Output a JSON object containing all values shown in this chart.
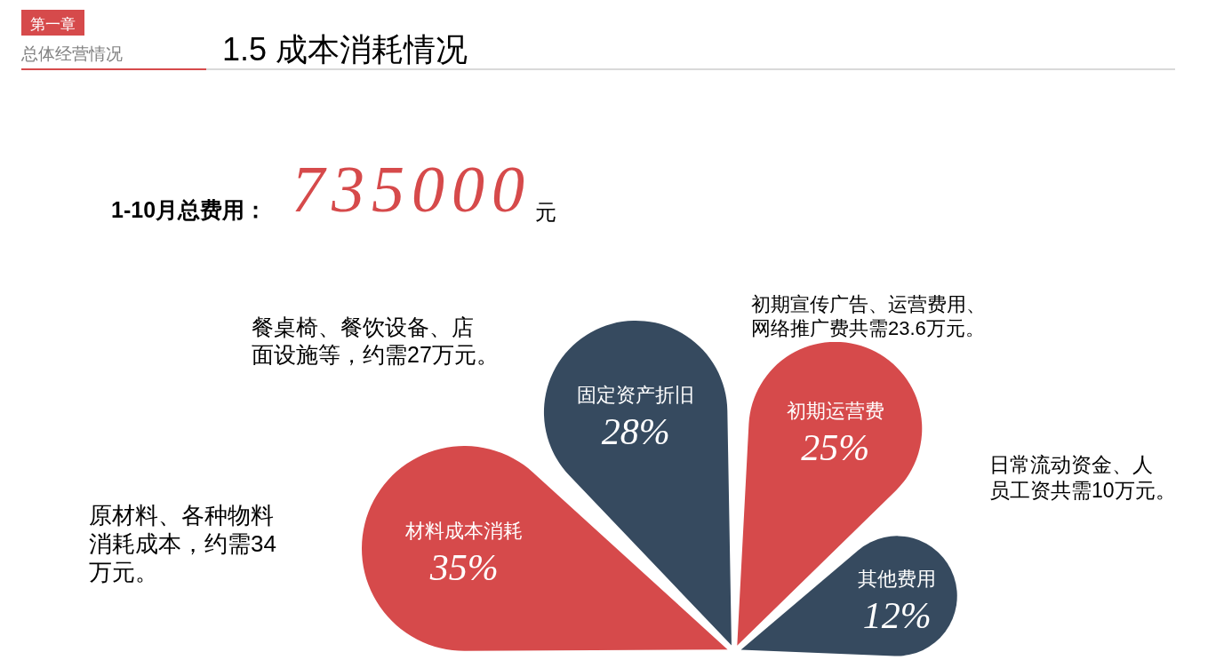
{
  "chart_data": {
    "type": "other",
    "title": "1.5 成本消耗情况",
    "subtitle": "总体经营情况",
    "annotations": [
      "第一章",
      "1-10月总费用：",
      "735000",
      "元",
      "餐桌椅、餐饮设备、店面设施等，约需27万元。",
      "初期宣传广告、运营费用、网络推广费共需23.6万元。",
      "日常流动资金、人员工资共需10万元。",
      "原材料、各种物料消耗成本，约需34万元。"
    ],
    "categories": [
      "材料成本消耗",
      "固定资产折旧",
      "初期运营费",
      "其他费用"
    ],
    "values": [
      35,
      28,
      25,
      12
    ],
    "value_labels": [
      "35%",
      "28%",
      "25%",
      "12%"
    ],
    "colors": [
      "#d64a4b",
      "#364a5f",
      "#d64a4b",
      "#364a5f"
    ]
  }
}
